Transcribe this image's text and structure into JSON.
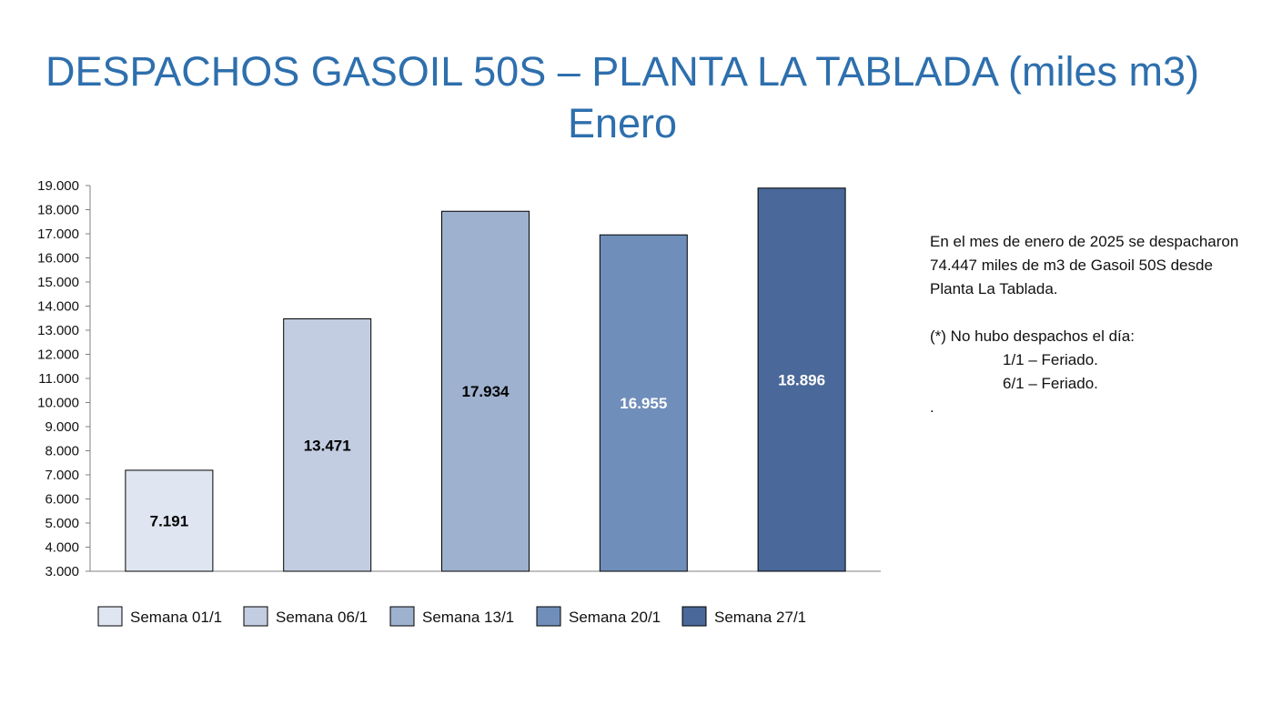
{
  "title": {
    "line1": "DESPACHOS GASOIL 50S – PLANTA LA TABLADA (miles m3)",
    "line2": "Enero"
  },
  "chart_data": {
    "type": "bar",
    "title": "",
    "xlabel": "",
    "ylabel": "",
    "ylim": [
      3000,
      19000
    ],
    "yticks": [
      "3.000",
      "4.000",
      "5.000",
      "6.000",
      "7.000",
      "8.000",
      "9.000",
      "10.000",
      "11.000",
      "12.000",
      "13.000",
      "14.000",
      "15.000",
      "16.000",
      "17.000",
      "18.000",
      "19.000"
    ],
    "legend_position": "bottom",
    "grid": false,
    "series": [
      {
        "name": "Semana 01/1",
        "value": 7191,
        "label": "7.191",
        "color": "#dfe6f1",
        "label_color": "#000000"
      },
      {
        "name": "Semana 06/1",
        "value": 13471,
        "label": "13.471",
        "color": "#c3cde1",
        "label_color": "#000000"
      },
      {
        "name": "Semana 13/1",
        "value": 17934,
        "label": "17.934",
        "color": "#9eb1ce",
        "label_color": "#000000"
      },
      {
        "name": "Semana 20/1",
        "value": 16955,
        "label": "16.955",
        "color": "#6f8eba",
        "label_color": "#ffffff"
      },
      {
        "name": "Semana 27/1",
        "value": 18896,
        "label": "18.896",
        "color": "#4a6899",
        "label_color": "#ffffff"
      }
    ]
  },
  "note": {
    "summary": "En el mes de enero de 2025 se despacharon 74.447 miles de m3 de Gasoil 50S desde Planta La Tablada.",
    "heading": "(*) No hubo despachos el día:",
    "items": [
      "1/1 – Feriado.",
      "6/1 – Feriado."
    ],
    "trailing": "."
  }
}
